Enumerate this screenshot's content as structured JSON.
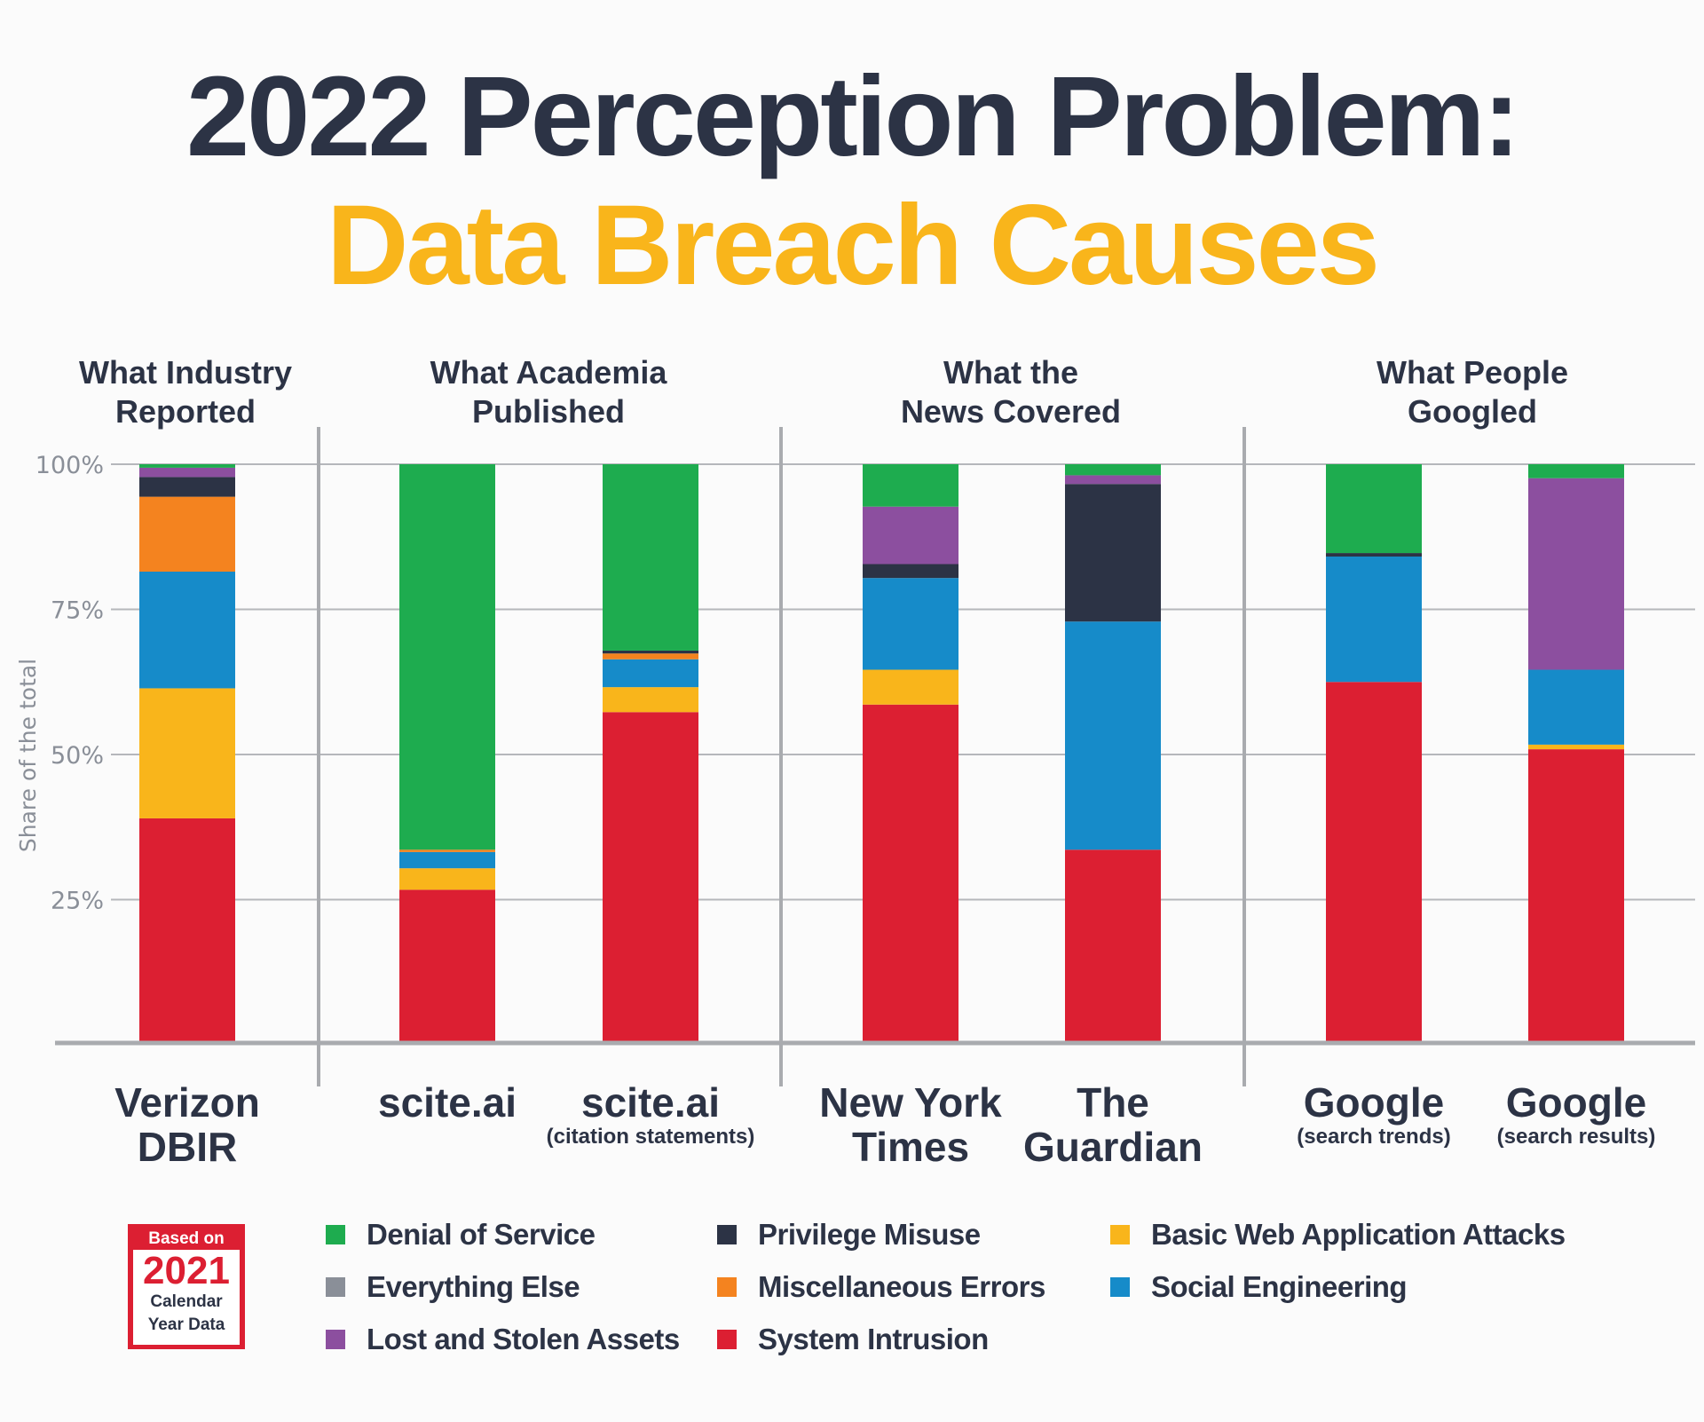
{
  "title": {
    "line1": "2022 Perception Problem:",
    "line2": "Data Breach Causes"
  },
  "colors": {
    "title_dark": "#2c3345",
    "title_accent": "#f9b51b"
  },
  "badge": {
    "top": "Based on",
    "year": "2021",
    "line1": "Calendar",
    "line2": "Year Data"
  },
  "chart_data": {
    "type": "bar",
    "stacked": true,
    "ylabel": "Share of the total",
    "ylim": [
      0,
      100
    ],
    "yticks": [
      "25%",
      "50%",
      "75%",
      "100%"
    ],
    "grid": true,
    "groups": [
      {
        "label": "What Industry Reported"
      },
      {
        "label": "What Academia Published"
      },
      {
        "label": "What the News Covered"
      },
      {
        "label": "What People Googled"
      }
    ],
    "group_lines": [
      [
        "What Industry",
        "Reported"
      ],
      [
        "What Academia",
        "Published"
      ],
      [
        "What the",
        "News Covered"
      ],
      [
        "What People",
        "Googled"
      ]
    ],
    "categories": [
      {
        "name": [
          "Verizon",
          "DBIR"
        ],
        "sub": "",
        "group": 0
      },
      {
        "name": [
          "scite.ai"
        ],
        "sub": "",
        "group": 1
      },
      {
        "name": [
          "scite.ai"
        ],
        "sub": "(citation statements)",
        "group": 1
      },
      {
        "name": [
          "New York",
          "Times"
        ],
        "sub": "",
        "group": 2
      },
      {
        "name": [
          "The",
          "Guardian"
        ],
        "sub": "",
        "group": 2
      },
      {
        "name": [
          "Google"
        ],
        "sub": "(search trends)",
        "group": 3
      },
      {
        "name": [
          "Google"
        ],
        "sub": "(search results)",
        "group": 3
      }
    ],
    "series": [
      {
        "name": "System Intrusion",
        "color": "#dc1f32",
        "values": [
          39.0,
          26.7,
          57.3,
          58.6,
          33.6,
          62.5,
          50.9
        ]
      },
      {
        "name": "Basic Web Application Attacks",
        "color": "#f9b51b",
        "values": [
          22.4,
          3.7,
          4.3,
          6.0,
          0,
          0,
          0.8
        ]
      },
      {
        "name": "Social Engineering",
        "color": "#168bc9",
        "values": [
          20.1,
          2.8,
          4.8,
          15.8,
          39.3,
          21.6,
          12.9
        ]
      },
      {
        "name": "Miscellaneous Errors",
        "color": "#f4831f",
        "values": [
          12.9,
          0.4,
          1.0,
          0,
          0,
          0,
          0
        ]
      },
      {
        "name": "Everything Else",
        "color": "#8a8f98",
        "values": [
          0,
          0,
          0,
          0,
          0,
          0,
          0
        ]
      },
      {
        "name": "Privilege Misuse",
        "color": "#2c3345",
        "values": [
          3.4,
          0,
          0.5,
          2.4,
          23.7,
          0.6,
          0
        ]
      },
      {
        "name": "Lost and Stolen Assets",
        "color": "#8c4f9f",
        "values": [
          1.6,
          0,
          0,
          9.9,
          1.5,
          0,
          33.0
        ]
      },
      {
        "name": "Denial of Service",
        "color": "#1eac4f",
        "values": [
          0.6,
          66.4,
          32.1,
          7.3,
          1.9,
          15.3,
          2.4
        ]
      }
    ],
    "legend": [
      [
        "Denial of Service",
        "Everything Else",
        "Lost and Stolen Assets"
      ],
      [
        "Privilege Misuse",
        "Miscellaneous Errors",
        "System Intrusion"
      ],
      [
        "Basic Web Application Attacks",
        "Social Engineering"
      ]
    ],
    "legend_placement": "bottom"
  }
}
